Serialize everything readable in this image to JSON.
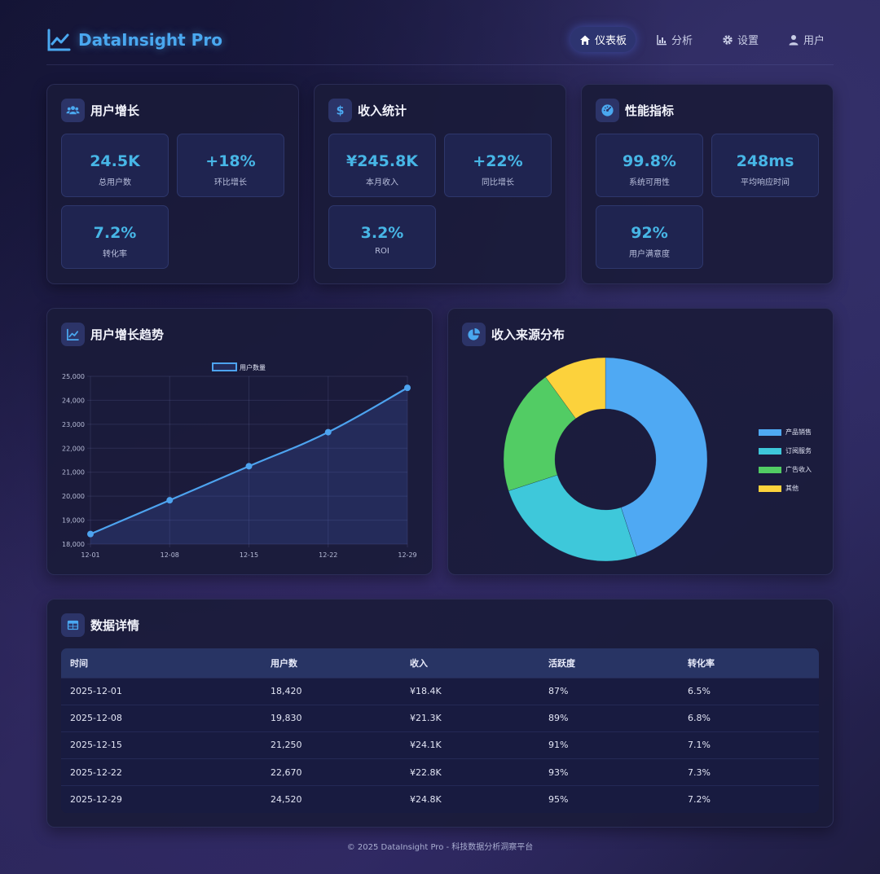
{
  "header": {
    "brand": "DataInsight Pro",
    "nav": [
      {
        "label": "仪表板",
        "icon": "home-icon",
        "active": true
      },
      {
        "label": "分析",
        "icon": "chart-icon",
        "active": false
      },
      {
        "label": "设置",
        "icon": "gear-icon",
        "active": false
      },
      {
        "label": "用户",
        "icon": "user-icon",
        "active": false
      }
    ]
  },
  "cards": {
    "users": {
      "title": "用户增长",
      "icon": "users-icon",
      "metrics": [
        {
          "value": "24.5K",
          "label": "总用户数"
        },
        {
          "value": "+18%",
          "label": "环比增长"
        },
        {
          "value": "7.2%",
          "label": "转化率"
        }
      ]
    },
    "revenue": {
      "title": "收入统计",
      "icon": "dollar-icon",
      "metrics": [
        {
          "value": "¥245.8K",
          "label": "本月收入"
        },
        {
          "value": "+22%",
          "label": "同比增长"
        },
        {
          "value": "3.2%",
          "label": "ROI"
        }
      ]
    },
    "performance": {
      "title": "性能指标",
      "icon": "gauge-icon",
      "metrics": [
        {
          "value": "99.8%",
          "label": "系统可用性"
        },
        {
          "value": "248ms",
          "label": "平均响应时间"
        },
        {
          "value": "92%",
          "label": "用户满意度"
        }
      ]
    }
  },
  "trend_card": {
    "title": "用户增长趋势",
    "icon": "line-chart-icon"
  },
  "pie_card": {
    "title": "收入来源分布",
    "icon": "pie-chart-icon"
  },
  "chart_data": [
    {
      "type": "line",
      "legend": [
        "用户数量"
      ],
      "x": [
        "12-01",
        "12-08",
        "12-15",
        "12-22",
        "12-29"
      ],
      "series": [
        {
          "name": "用户数量",
          "values": [
            18420,
            19830,
            21250,
            22670,
            24520
          ],
          "color": "#4da3ef"
        }
      ],
      "ylim": [
        18000,
        25000
      ],
      "yticks": [
        "18,000",
        "19,000",
        "20,000",
        "21,000",
        "22,000",
        "23,000",
        "24,000",
        "25,000"
      ],
      "grid": true,
      "legend_position": "top"
    },
    {
      "type": "pie",
      "donut": true,
      "categories": [
        "产品销售",
        "订阅服务",
        "广告收入",
        "其他"
      ],
      "values": [
        45,
        25,
        20,
        10
      ],
      "colors": [
        "#4fa9f3",
        "#3ec8da",
        "#52cc64",
        "#fcd23c"
      ],
      "legend_position": "right"
    }
  ],
  "table": {
    "title": "数据详情",
    "icon": "table-icon",
    "headers": [
      "时间",
      "用户数",
      "收入",
      "活跃度",
      "转化率"
    ],
    "rows": [
      [
        "2025-12-01",
        "18,420",
        "¥18.4K",
        "87%",
        "6.5%"
      ],
      [
        "2025-12-08",
        "19,830",
        "¥21.3K",
        "89%",
        "6.8%"
      ],
      [
        "2025-12-15",
        "21,250",
        "¥24.1K",
        "91%",
        "7.1%"
      ],
      [
        "2025-12-22",
        "22,670",
        "¥22.8K",
        "93%",
        "7.3%"
      ],
      [
        "2025-12-29",
        "24,520",
        "¥24.8K",
        "95%",
        "7.2%"
      ]
    ]
  },
  "footer": "© 2025 DataInsight Pro - 科技数据分析洞察平台"
}
